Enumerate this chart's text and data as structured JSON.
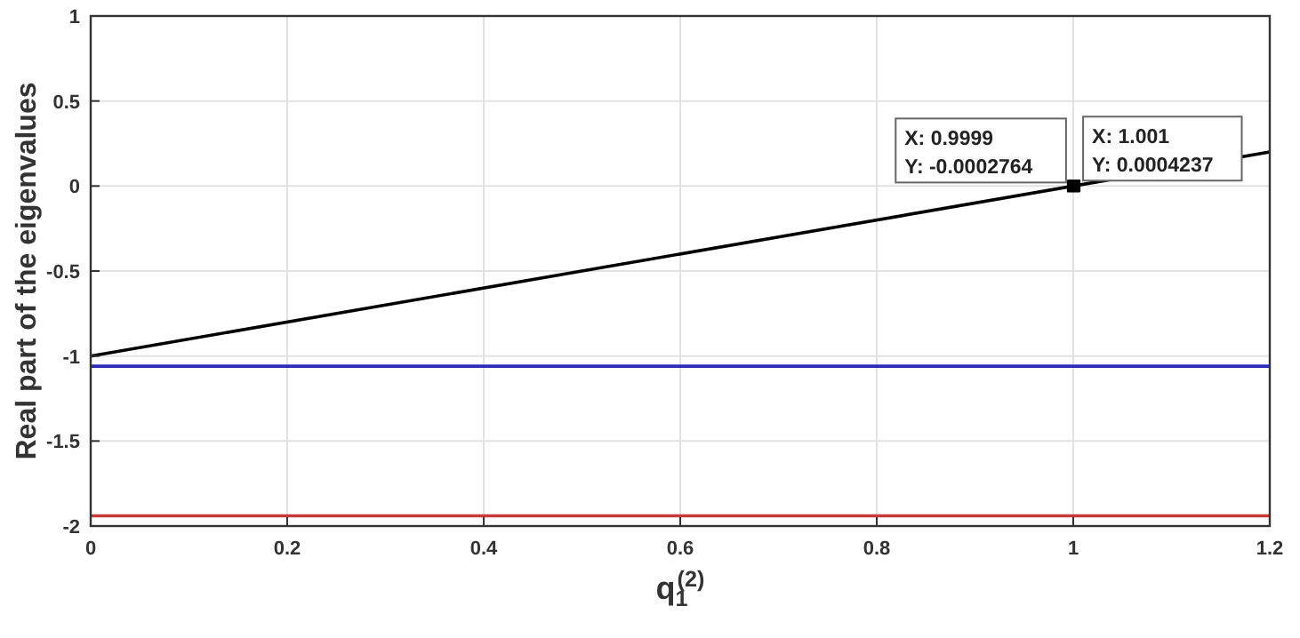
{
  "chart_data": {
    "type": "line",
    "xlabel": "q$_{1}$$^{(2)}$",
    "ylabel": "Real part of the eigenvalues",
    "x": [
      0,
      1.2
    ],
    "series": [
      {
        "color": "#000000",
        "values": [
          -1,
          0.2
        ]
      },
      {
        "color": "#2b2bb8",
        "values": [
          -1.06,
          -1.06
        ]
      },
      {
        "color": "#c83a3a",
        "values": [
          -1.94,
          -1.94
        ]
      }
    ],
    "xlim": [
      0,
      1.2
    ],
    "xticks": [
      0,
      0.2,
      0.4,
      0.6,
      0.8,
      1,
      1.2
    ],
    "ylim": [
      -2,
      1
    ],
    "yticks": [
      -2,
      -1.5,
      -1,
      -0.5,
      0,
      0.5,
      1
    ],
    "grid": true,
    "annotations": [
      {
        "text": "X: 0.9999\nY: -0.0002764",
        "x": 0.9999,
        "y": -0.0002764
      },
      {
        "text": "X: 1.001\nY: 0.0004237",
        "x": 1.001,
        "y": 0.0004237
      }
    ]
  }
}
